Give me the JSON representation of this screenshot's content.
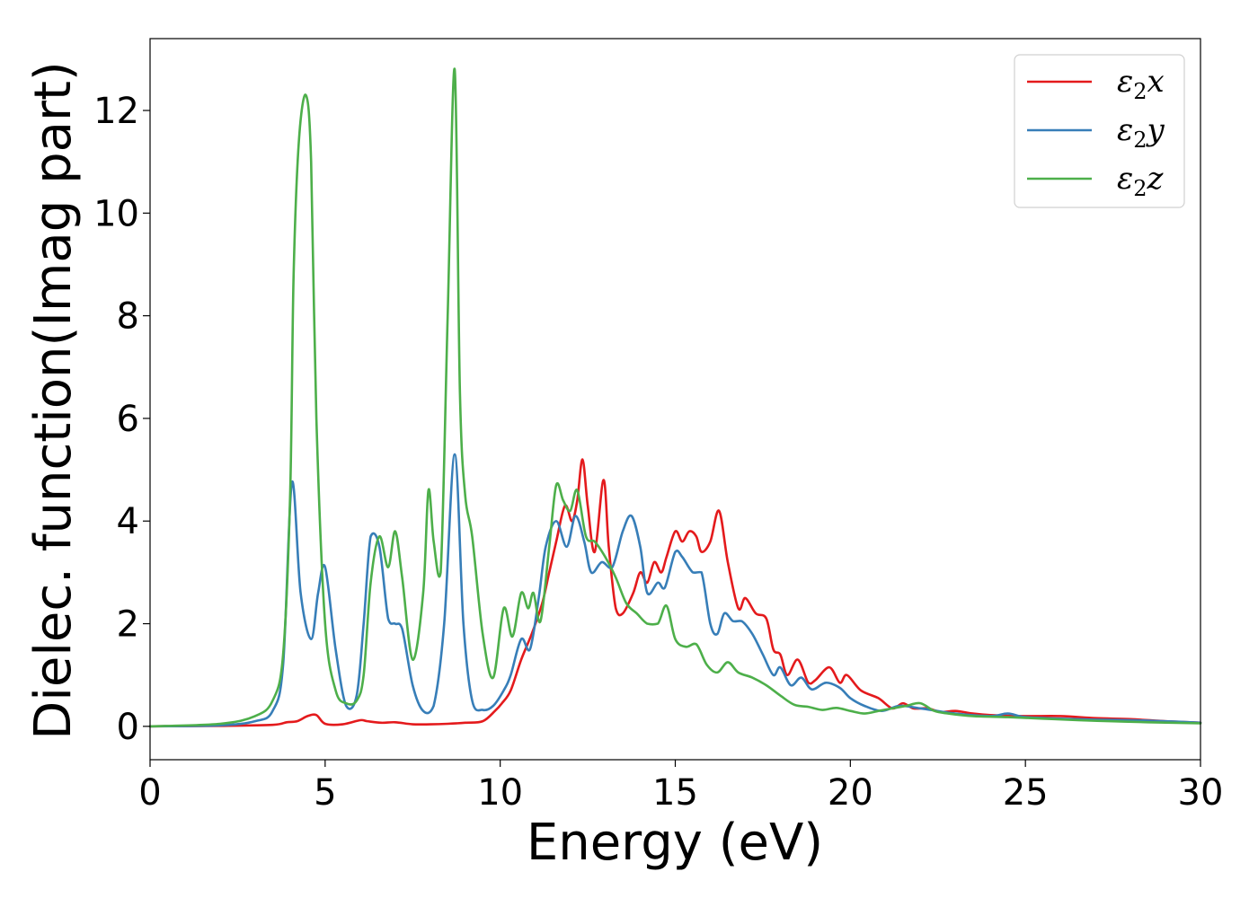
{
  "chart_data": {
    "type": "line",
    "title": "",
    "xlabel": "Energy (eV)",
    "ylabel": "Dielec. function(Imag part)",
    "xlim": [
      0,
      30
    ],
    "ylim": [
      -0.65,
      13.4
    ],
    "xticks": [
      0,
      5,
      10,
      15,
      20,
      25,
      30
    ],
    "yticks": [
      0,
      2,
      4,
      6,
      8,
      10,
      12
    ],
    "grid": false,
    "legend_position": "top-right",
    "series": [
      {
        "name": "ε2x",
        "legend_base": "ε",
        "legend_sub": "2",
        "legend_suffix": "x",
        "color": "#e41a1c",
        "x": [
          0,
          2,
          3.5,
          3.9,
          4.2,
          4.5,
          4.75,
          5.0,
          5.5,
          6.0,
          6.2,
          6.6,
          7.0,
          7.5,
          8.0,
          8.5,
          9.0,
          9.5,
          9.85,
          10.05,
          10.3,
          10.6,
          10.9,
          11.2,
          11.4,
          11.6,
          11.85,
          12.05,
          12.2,
          12.35,
          12.5,
          12.7,
          12.95,
          13.1,
          13.3,
          13.5,
          13.8,
          14.0,
          14.2,
          14.4,
          14.6,
          14.75,
          15.0,
          15.2,
          15.4,
          15.6,
          15.75,
          16.0,
          16.25,
          16.5,
          16.8,
          17.0,
          17.3,
          17.6,
          17.8,
          18.0,
          18.2,
          18.5,
          18.8,
          19.0,
          19.4,
          19.7,
          19.9,
          20.3,
          20.8,
          21.2,
          21.5,
          21.8,
          22.2,
          22.6,
          23.0,
          23.5,
          24.0,
          25.0,
          26.0,
          27.0,
          28.0,
          29.0,
          30.0
        ],
        "y": [
          0,
          0.01,
          0.03,
          0.08,
          0.1,
          0.2,
          0.22,
          0.05,
          0.04,
          0.12,
          0.1,
          0.07,
          0.08,
          0.04,
          0.04,
          0.05,
          0.07,
          0.1,
          0.3,
          0.45,
          0.7,
          1.3,
          1.8,
          2.4,
          3.0,
          3.6,
          4.3,
          4.0,
          4.4,
          5.2,
          4.3,
          3.4,
          4.8,
          3.5,
          2.3,
          2.2,
          2.6,
          3.0,
          2.8,
          3.2,
          3.0,
          3.3,
          3.8,
          3.6,
          3.8,
          3.7,
          3.4,
          3.6,
          4.2,
          3.2,
          2.3,
          2.5,
          2.2,
          2.1,
          1.5,
          1.4,
          1.0,
          1.3,
          0.85,
          0.9,
          1.15,
          0.85,
          1.0,
          0.7,
          0.55,
          0.35,
          0.45,
          0.35,
          0.35,
          0.28,
          0.3,
          0.25,
          0.22,
          0.2,
          0.2,
          0.16,
          0.14,
          0.1,
          0.07
        ]
      },
      {
        "name": "ε2y",
        "legend_base": "ε",
        "legend_sub": "2",
        "legend_suffix": "y",
        "color": "#377eb8",
        "x": [
          0,
          2,
          3.0,
          3.5,
          3.8,
          4.05,
          4.3,
          4.6,
          4.8,
          5.0,
          5.3,
          5.6,
          5.9,
          6.1,
          6.3,
          6.55,
          6.8,
          7.0,
          7.2,
          7.5,
          7.8,
          8.1,
          8.4,
          8.7,
          8.95,
          9.2,
          9.5,
          9.8,
          10.1,
          10.3,
          10.6,
          10.85,
          11.1,
          11.3,
          11.6,
          11.9,
          12.15,
          12.4,
          12.6,
          12.9,
          13.2,
          13.5,
          13.75,
          14.0,
          14.2,
          14.5,
          14.7,
          15.0,
          15.2,
          15.5,
          15.75,
          16.0,
          16.2,
          16.4,
          16.65,
          16.9,
          17.2,
          17.5,
          17.8,
          18.0,
          18.3,
          18.6,
          18.9,
          19.3,
          19.7,
          20.0,
          20.4,
          20.9,
          21.4,
          22.0,
          23.0,
          24.0,
          24.5,
          25.0,
          26.0,
          27.0,
          28.0,
          29.0,
          30.0
        ],
        "y": [
          0,
          0.02,
          0.1,
          0.3,
          1.2,
          4.75,
          2.6,
          1.7,
          2.6,
          3.1,
          1.5,
          0.4,
          0.6,
          2.0,
          3.7,
          3.5,
          2.1,
          2.0,
          1.9,
          0.8,
          0.3,
          0.4,
          2.0,
          5.3,
          2.0,
          0.5,
          0.32,
          0.4,
          0.7,
          1.0,
          1.7,
          1.5,
          2.5,
          3.5,
          4.0,
          3.5,
          4.1,
          3.6,
          3.0,
          3.2,
          3.1,
          3.8,
          4.1,
          3.5,
          2.6,
          2.8,
          2.7,
          3.4,
          3.3,
          3.0,
          3.0,
          2.0,
          1.8,
          2.2,
          2.05,
          2.05,
          1.8,
          1.4,
          1.0,
          1.15,
          0.8,
          0.95,
          0.72,
          0.85,
          0.75,
          0.55,
          0.4,
          0.3,
          0.4,
          0.35,
          0.25,
          0.2,
          0.25,
          0.18,
          0.15,
          0.13,
          0.12,
          0.1,
          0.07
        ]
      },
      {
        "name": "ε2z",
        "legend_base": "ε",
        "legend_sub": "2",
        "legend_suffix": "z",
        "color": "#4daf4a",
        "x": [
          0,
          2,
          3.0,
          3.5,
          3.8,
          4.0,
          4.1,
          4.25,
          4.45,
          4.6,
          4.75,
          5.0,
          5.3,
          5.6,
          5.9,
          6.1,
          6.3,
          6.55,
          6.8,
          7.0,
          7.2,
          7.5,
          7.8,
          7.95,
          8.1,
          8.3,
          8.5,
          8.7,
          8.85,
          9.0,
          9.2,
          9.5,
          9.8,
          10.1,
          10.35,
          10.6,
          10.8,
          10.95,
          11.15,
          11.4,
          11.6,
          11.8,
          12.0,
          12.2,
          12.45,
          12.7,
          13.0,
          13.3,
          13.6,
          13.9,
          14.2,
          14.5,
          14.75,
          15.0,
          15.3,
          15.6,
          15.9,
          16.2,
          16.5,
          16.8,
          17.2,
          17.6,
          18.0,
          18.4,
          18.8,
          19.2,
          19.6,
          20.0,
          20.4,
          20.8,
          21.2,
          21.6,
          22.0,
          22.4,
          22.8,
          23.5,
          24.5,
          25.5,
          26.5,
          27.5,
          28.5,
          30.0
        ],
        "y": [
          0,
          0.05,
          0.2,
          0.5,
          1.4,
          4.5,
          8.8,
          11.4,
          12.3,
          11.0,
          6.0,
          2.0,
          0.7,
          0.45,
          0.5,
          1.0,
          2.8,
          3.7,
          3.1,
          3.8,
          2.9,
          1.3,
          2.6,
          4.6,
          3.6,
          3.0,
          8.0,
          12.8,
          6.5,
          4.5,
          3.7,
          1.8,
          0.95,
          2.3,
          1.75,
          2.6,
          2.3,
          2.6,
          2.05,
          3.5,
          4.7,
          4.4,
          4.2,
          4.6,
          3.7,
          3.6,
          3.3,
          2.9,
          2.4,
          2.2,
          2.0,
          2.0,
          2.35,
          1.7,
          1.55,
          1.6,
          1.2,
          1.05,
          1.25,
          1.05,
          0.95,
          0.8,
          0.6,
          0.42,
          0.38,
          0.32,
          0.36,
          0.3,
          0.25,
          0.3,
          0.35,
          0.4,
          0.45,
          0.3,
          0.25,
          0.2,
          0.18,
          0.15,
          0.12,
          0.1,
          0.08,
          0.06
        ]
      }
    ]
  }
}
